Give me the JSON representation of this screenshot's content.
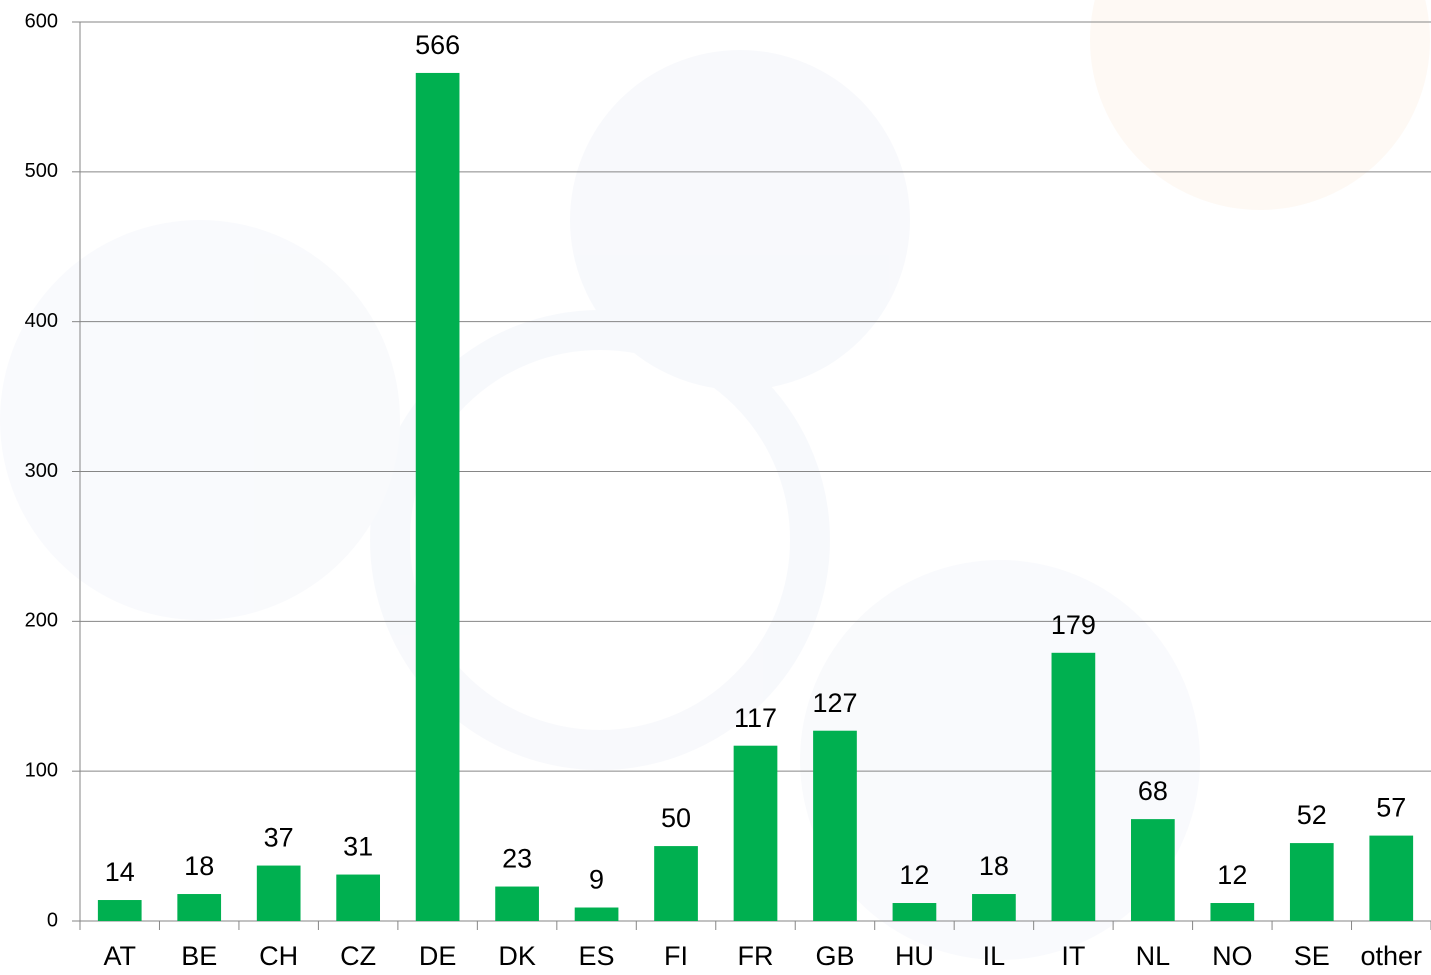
{
  "chart_data": {
    "type": "bar",
    "categories": [
      "AT",
      "BE",
      "CH",
      "CZ",
      "DE",
      "DK",
      "ES",
      "FI",
      "FR",
      "GB",
      "HU",
      "IL",
      "IT",
      "NL",
      "NO",
      "SE",
      "other"
    ],
    "values": [
      14,
      18,
      37,
      31,
      566,
      23,
      9,
      50,
      117,
      127,
      12,
      18,
      179,
      68,
      12,
      52,
      57
    ],
    "color": "#00b050",
    "ylim": [
      0,
      600
    ],
    "yticks": [
      0,
      100,
      200,
      300,
      400,
      500,
      600
    ],
    "grid": true
  }
}
